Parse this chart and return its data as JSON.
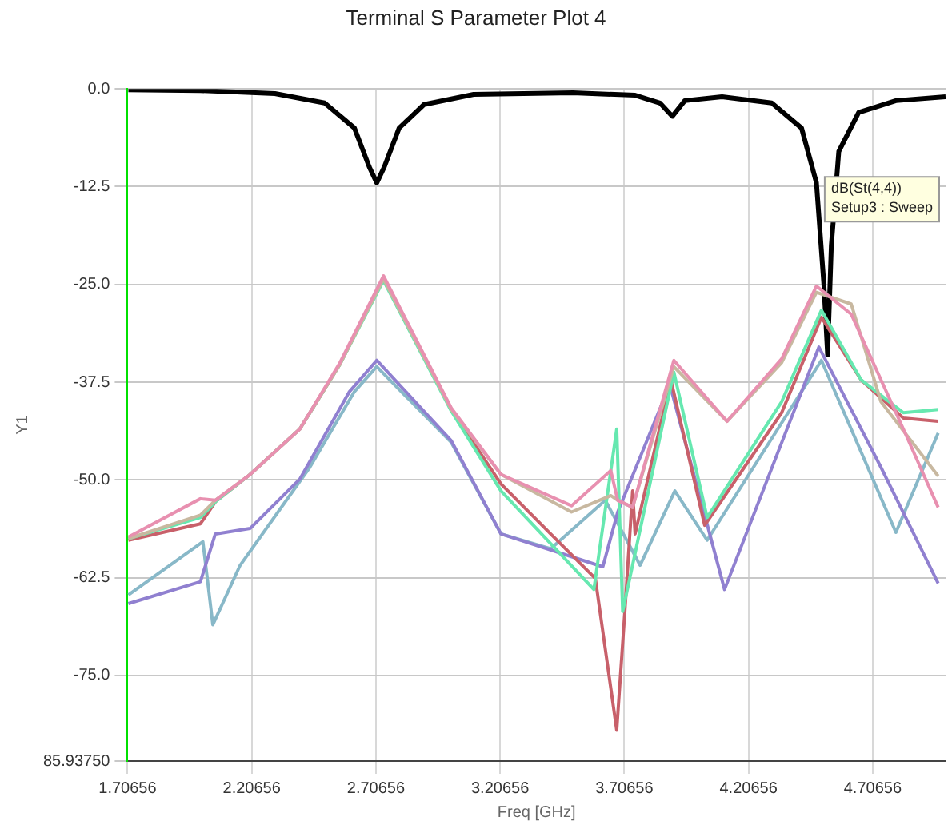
{
  "chart_data": {
    "type": "line",
    "title": "Terminal S Parameter Plot 4",
    "xlabel": "Freq [GHz]",
    "ylabel": "Y1",
    "annotations": [
      "dB(St(4,4))",
      "Setup3 : Sweep"
    ],
    "xlim": [
      1.70656,
      5.0
    ],
    "xticks": [
      1.70656,
      2.20656,
      2.70656,
      3.20656,
      3.70656,
      4.20656,
      4.70656
    ],
    "ylim": [
      -85.9375,
      0
    ],
    "yticks": [
      {
        "value": 0,
        "label": "0.0"
      },
      {
        "value": -12.5,
        "label": "-12.5"
      },
      {
        "value": -25,
        "label": "-25.0"
      },
      {
        "value": -37.5,
        "label": "-37.5"
      },
      {
        "value": -50,
        "label": "-50.0"
      },
      {
        "value": -62.5,
        "label": "-62.5"
      },
      {
        "value": -75,
        "label": "-75.0"
      },
      {
        "value": -85.9375,
        "label": "85.93750"
      }
    ],
    "grid": true,
    "legend": false,
    "marker": "none",
    "line_style": "solid",
    "series": [
      {
        "color": "#e890b0",
        "x": [
          1.71,
          2.0,
          2.06,
          2.2,
          2.4,
          2.56,
          2.737,
          3.01,
          3.21,
          3.494,
          3.652,
          3.68,
          3.74,
          3.906,
          4.12,
          4.34,
          4.48,
          4.62,
          4.83,
          4.97
        ],
        "values": [
          -57.3,
          -52.4,
          -52.6,
          -49.3,
          -43.5,
          -35.1,
          -23.9,
          -40.8,
          -49.3,
          -53.3,
          -48.8,
          -52.6,
          -53.5,
          -34.7,
          -42.5,
          -34.5,
          -25.2,
          -28.8,
          -43.5,
          -53.5
        ]
      },
      {
        "color": "#c8b8a0",
        "x": [
          1.71,
          2.0,
          2.06,
          2.2,
          2.4,
          2.56,
          2.737,
          3.01,
          3.21,
          3.494,
          3.652,
          3.68,
          3.74,
          3.906,
          4.12,
          4.34,
          4.48,
          4.62,
          4.74,
          4.97
        ],
        "values": [
          -57.5,
          -54.5,
          -52.6,
          -49.3,
          -43.5,
          -35.3,
          -24.3,
          -41,
          -49.3,
          -54.1,
          -52,
          -52.6,
          -53.5,
          -35.5,
          -42.5,
          -35,
          -26,
          -27.5,
          -40,
          -49.5
        ]
      },
      {
        "color": "#66e8b0",
        "x": [
          1.71,
          2.0,
          2.06,
          2.2,
          2.4,
          2.56,
          2.737,
          3.01,
          3.21,
          3.584,
          3.676,
          3.7,
          3.906,
          4.04,
          4.34,
          4.5,
          4.66,
          4.83,
          4.97
        ],
        "values": [
          -57.5,
          -54.8,
          -52.8,
          -49.3,
          -43.5,
          -35.3,
          -24.5,
          -41.2,
          -51.4,
          -64,
          -43.5,
          -66.8,
          -36.2,
          -54.8,
          -40,
          -28.3,
          -37.2,
          -41.4,
          -41
        ]
      },
      {
        "color": "#c8606a",
        "x": [
          1.71,
          2.0,
          2.06,
          2.2,
          2.4,
          2.56,
          2.737,
          3.01,
          3.21,
          3.41,
          3.59,
          3.676,
          3.71,
          3.74,
          3.75,
          3.894,
          4.03,
          4.34,
          4.5,
          4.66,
          4.83,
          4.97
        ],
        "values": [
          -57.7,
          -55.6,
          -52.8,
          -49.3,
          -43.5,
          -35.3,
          -24.2,
          -41,
          -50.5,
          -56.9,
          -62.6,
          -82,
          -66.2,
          -51.4,
          -56.9,
          -37.2,
          -55.8,
          -41.4,
          -29.2,
          -37.2,
          -42.1,
          -42.5
        ]
      },
      {
        "color": "#9080d0",
        "x": [
          1.71,
          2.0,
          2.06,
          2.2,
          2.4,
          2.6,
          2.71,
          3.01,
          3.21,
          3.62,
          3.68,
          3.89,
          4.11,
          4.49,
          4.74,
          4.97
        ],
        "values": [
          -65.8,
          -63,
          -56.9,
          -56.2,
          -49.9,
          -38.7,
          -34.7,
          -45,
          -56.9,
          -61.1,
          -54.1,
          -37.8,
          -64,
          -33,
          -48.4,
          -63.2
        ]
      },
      {
        "color": "#88b8c8",
        "x": [
          1.71,
          2.01,
          2.05,
          2.16,
          2.44,
          2.62,
          2.71,
          3.01,
          3.21,
          3.41,
          3.63,
          3.77,
          3.91,
          4.04,
          4.5,
          4.8,
          4.97
        ],
        "values": [
          -64.7,
          -57.9,
          -68.5,
          -60.9,
          -48.4,
          -38.7,
          -35.5,
          -45.2,
          -56.9,
          -58.8,
          -52.6,
          -60.9,
          -51.4,
          -57.7,
          -34.7,
          -56.7,
          -44
        ]
      },
      {
        "color": "#000000",
        "x": [
          1.71,
          2.0,
          2.3,
          2.5,
          2.62,
          2.68,
          2.71,
          2.74,
          2.8,
          2.9,
          3.1,
          3.5,
          3.75,
          3.85,
          3.9,
          3.95,
          4.1,
          4.3,
          4.42,
          4.48,
          4.51,
          4.525,
          4.54,
          4.57,
          4.65,
          4.8,
          5.0
        ],
        "values": [
          -0.1,
          -0.2,
          -0.6,
          -1.8,
          -5,
          -10,
          -12,
          -10,
          -5,
          -2,
          -0.7,
          -0.5,
          -0.8,
          -1.8,
          -3.5,
          -1.5,
          -1,
          -1.8,
          -5,
          -12,
          -25,
          -34,
          -20,
          -8,
          -3,
          -1.5,
          -1
        ]
      }
    ]
  }
}
